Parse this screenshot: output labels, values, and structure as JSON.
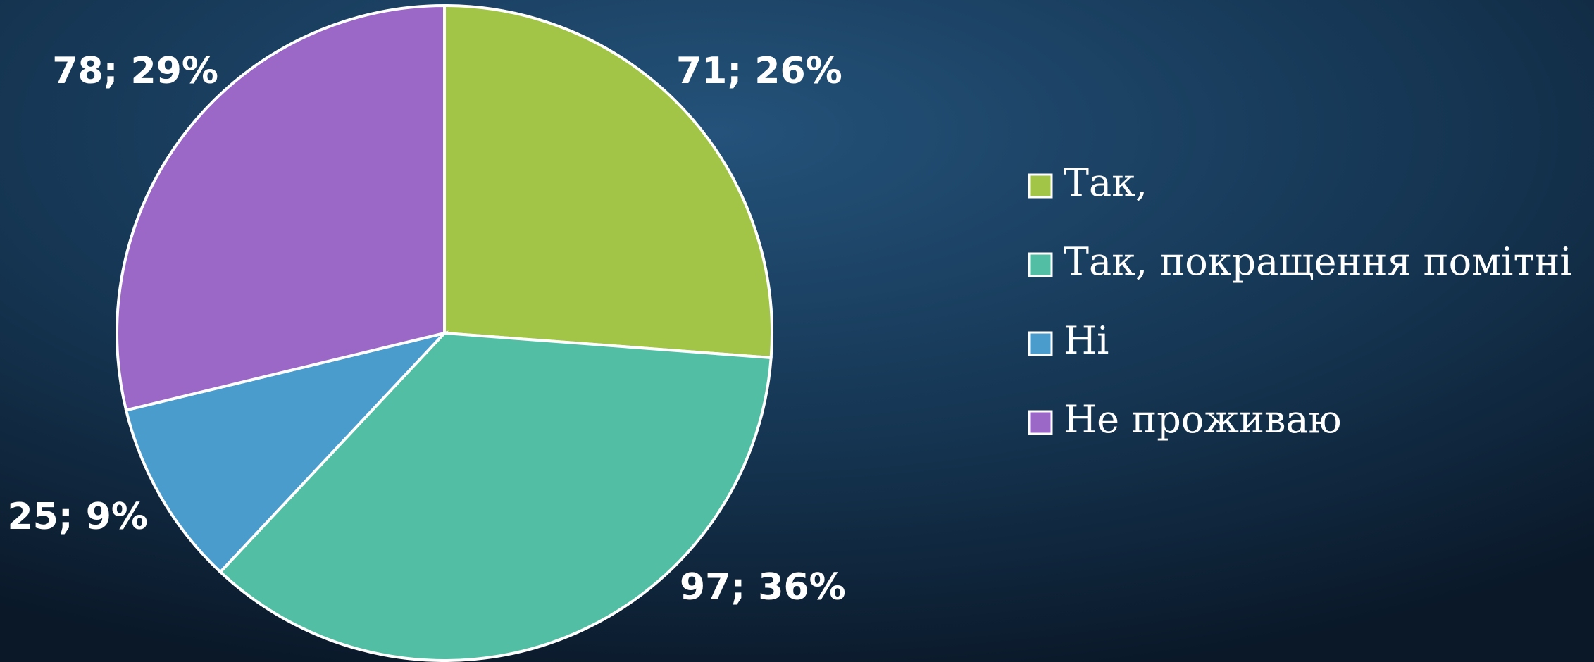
{
  "chart_data": {
    "type": "pie",
    "categories": [
      "Так,",
      "Так, покращення помітні",
      "Ні",
      "Не проживаю"
    ],
    "values": [
      71,
      97,
      25,
      78
    ],
    "value_labels": [
      "71; 26%",
      "97; 36%",
      "25; 9%",
      "78; 29%"
    ],
    "colors": [
      "#a2c547",
      "#52bfa4",
      "#4a9ccc",
      "#9b68c8"
    ],
    "legend": "right"
  }
}
